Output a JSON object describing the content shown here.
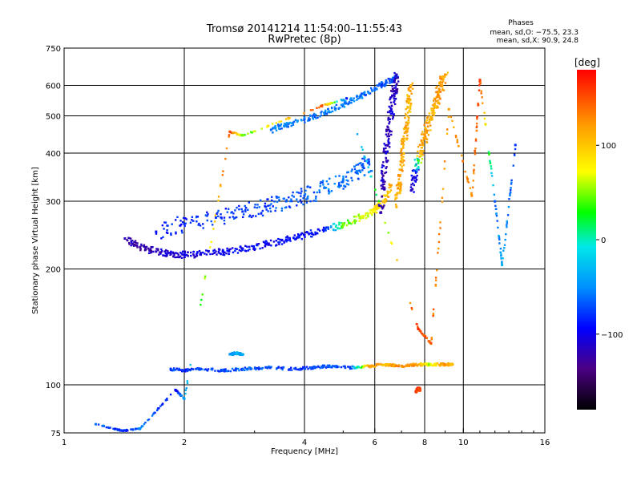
{
  "chart_data": {
    "type": "scatter",
    "title": "Tromsø 20141214 11:54:00–11:55:43",
    "subtitle": "RwPretec (8p)",
    "stats": {
      "title": "Phases",
      "line1": "mean, sd,O: −75.5, 23.3",
      "line2": "mean, sd,X:  90.9, 24.8"
    },
    "xlabel": "Frequency [MHz]",
    "ylabel": "Stationary phase Virtual Height [km]",
    "x_scale": "log",
    "y_scale": "log",
    "xlim": [
      1,
      16
    ],
    "ylim": [
      75,
      750
    ],
    "x_ticks": [
      1,
      2,
      4,
      6,
      8,
      10,
      16
    ],
    "x_tick_labels": [
      "1",
      "2",
      "4",
      "6",
      "8",
      "10",
      "16"
    ],
    "y_ticks": [
      75,
      100,
      200,
      300,
      400,
      500,
      600,
      750
    ],
    "y_tick_labels": [
      "75",
      "100",
      "200",
      "300",
      "400",
      "500",
      "600",
      "750"
    ],
    "x_grid": [
      2,
      4,
      6,
      8,
      10
    ],
    "y_grid": [
      100,
      200,
      300,
      400,
      500,
      600
    ],
    "grid": true,
    "colorbar": {
      "label": "[deg]",
      "range": [
        -180,
        180
      ],
      "ticks": [
        100,
        0,
        -100
      ],
      "tick_labels": [
        "100",
        "0",
        "−100"
      ]
    },
    "traces": [
      {
        "f": [
          1.42,
          1.55,
          1.7,
          1.85,
          2.0,
          2.2,
          2.5,
          2.8,
          3.2,
          3.6,
          4.0,
          4.5,
          5.0,
          5.5,
          6.0,
          6.3,
          6.6
        ],
        "h": [
          240,
          228,
          222,
          219,
          218,
          219,
          222,
          226,
          232,
          238,
          245,
          253,
          262,
          272,
          285,
          300,
          330
        ],
        "phase": [
          -120,
          -125,
          -115,
          -110,
          -105,
          -100,
          -100,
          -95,
          -95,
          -95,
          -90,
          -90,
          40,
          60,
          80,
          100,
          110
        ],
        "jitter": 0.025
      },
      {
        "f": [
          1.7,
          2.0,
          2.4,
          2.8,
          3.2,
          3.6,
          4.0,
          4.5,
          5.0,
          5.5,
          5.8
        ],
        "h": [
          250,
          262,
          272,
          282,
          290,
          300,
          310,
          325,
          340,
          360,
          380
        ],
        "phase": [
          -90,
          -85,
          -80,
          -80,
          -75,
          -70,
          -70,
          -60,
          -60,
          -65,
          -70
        ],
        "jitter": 0.06
      },
      {
        "f": [
          3.3,
          3.6,
          4.0,
          4.5,
          5.0,
          5.5,
          6.0,
          6.4,
          6.8
        ],
        "h": [
          460,
          475,
          490,
          510,
          535,
          560,
          590,
          610,
          630
        ],
        "phase": [
          -60,
          -55,
          -60,
          -60,
          -55,
          -60,
          -65,
          -70,
          -70
        ],
        "jitter": 0.02
      },
      {
        "f": [
          6.2,
          6.3,
          6.4,
          6.5,
          6.6,
          6.7,
          6.8
        ],
        "h": [
          280,
          340,
          400,
          460,
          520,
          580,
          640
        ],
        "phase": [
          -115,
          -120,
          -110,
          -115,
          -110,
          -120,
          -115
        ],
        "jitter": 0.04
      },
      {
        "f": [
          6.8,
          6.9,
          7.0,
          7.1,
          7.2,
          7.3,
          7.4
        ],
        "h": [
          290,
          330,
          380,
          430,
          480,
          540,
          600
        ],
        "phase": [
          110,
          115,
          120,
          110,
          115,
          105,
          120
        ],
        "jitter": 0.035
      },
      {
        "f": [
          7.4,
          7.6,
          7.8,
          8.0,
          8.2,
          8.4,
          8.6,
          8.8,
          9.0
        ],
        "h": [
          320,
          360,
          400,
          440,
          480,
          520,
          560,
          600,
          640
        ],
        "phase": [
          -110,
          -100,
          110,
          120,
          115,
          105,
          120,
          125,
          110
        ],
        "jitter": 0.04
      },
      {
        "f": [
          1.85,
          2.0,
          2.2,
          2.5,
          2.8,
          3.2,
          3.8,
          4.2,
          4.6,
          5.2,
          5.8,
          6.4,
          7.0,
          7.6,
          8.2,
          8.8,
          9.4
        ],
        "h": [
          110,
          109,
          110,
          109,
          110,
          111,
          110,
          111,
          112,
          111,
          112,
          113,
          112,
          113,
          113,
          113,
          113
        ],
        "phase": [
          -75,
          -80,
          -70,
          -75,
          -70,
          -75,
          -80,
          -75,
          -70,
          -75,
          120,
          110,
          130,
          125,
          60,
          120,
          110
        ],
        "jitter": 0.01
      },
      {
        "f": [
          2.6,
          2.7,
          2.8
        ],
        "h": [
          120,
          121,
          120
        ],
        "phase": [
          -45,
          -40,
          -45
        ],
        "jitter": 0.01
      },
      {
        "f": [
          7.6,
          7.7,
          7.8
        ],
        "h": [
          96,
          98,
          97
        ],
        "phase": [
          155,
          160,
          150
        ],
        "jitter": 0.01
      },
      {
        "f": [
          1.2,
          1.4,
          1.55,
          1.9,
          2.0,
          2.6,
          2.8,
          4.4,
          5.1,
          7.7,
          8.3,
          9.2,
          10.5,
          11.0,
          12.0,
          12.5,
          13.5
        ],
        "h": [
          79,
          76,
          77,
          97,
          92,
          455,
          445,
          530,
          555,
          140,
          128,
          520,
          310,
          620,
          300,
          205,
          420
        ],
        "phase": [
          -60,
          -80,
          -55,
          -100,
          -40,
          150,
          40,
          150,
          -80,
          160,
          140,
          120,
          130,
          155,
          -60,
          -40,
          -80
        ],
        "jitter": 0.005
      }
    ]
  }
}
